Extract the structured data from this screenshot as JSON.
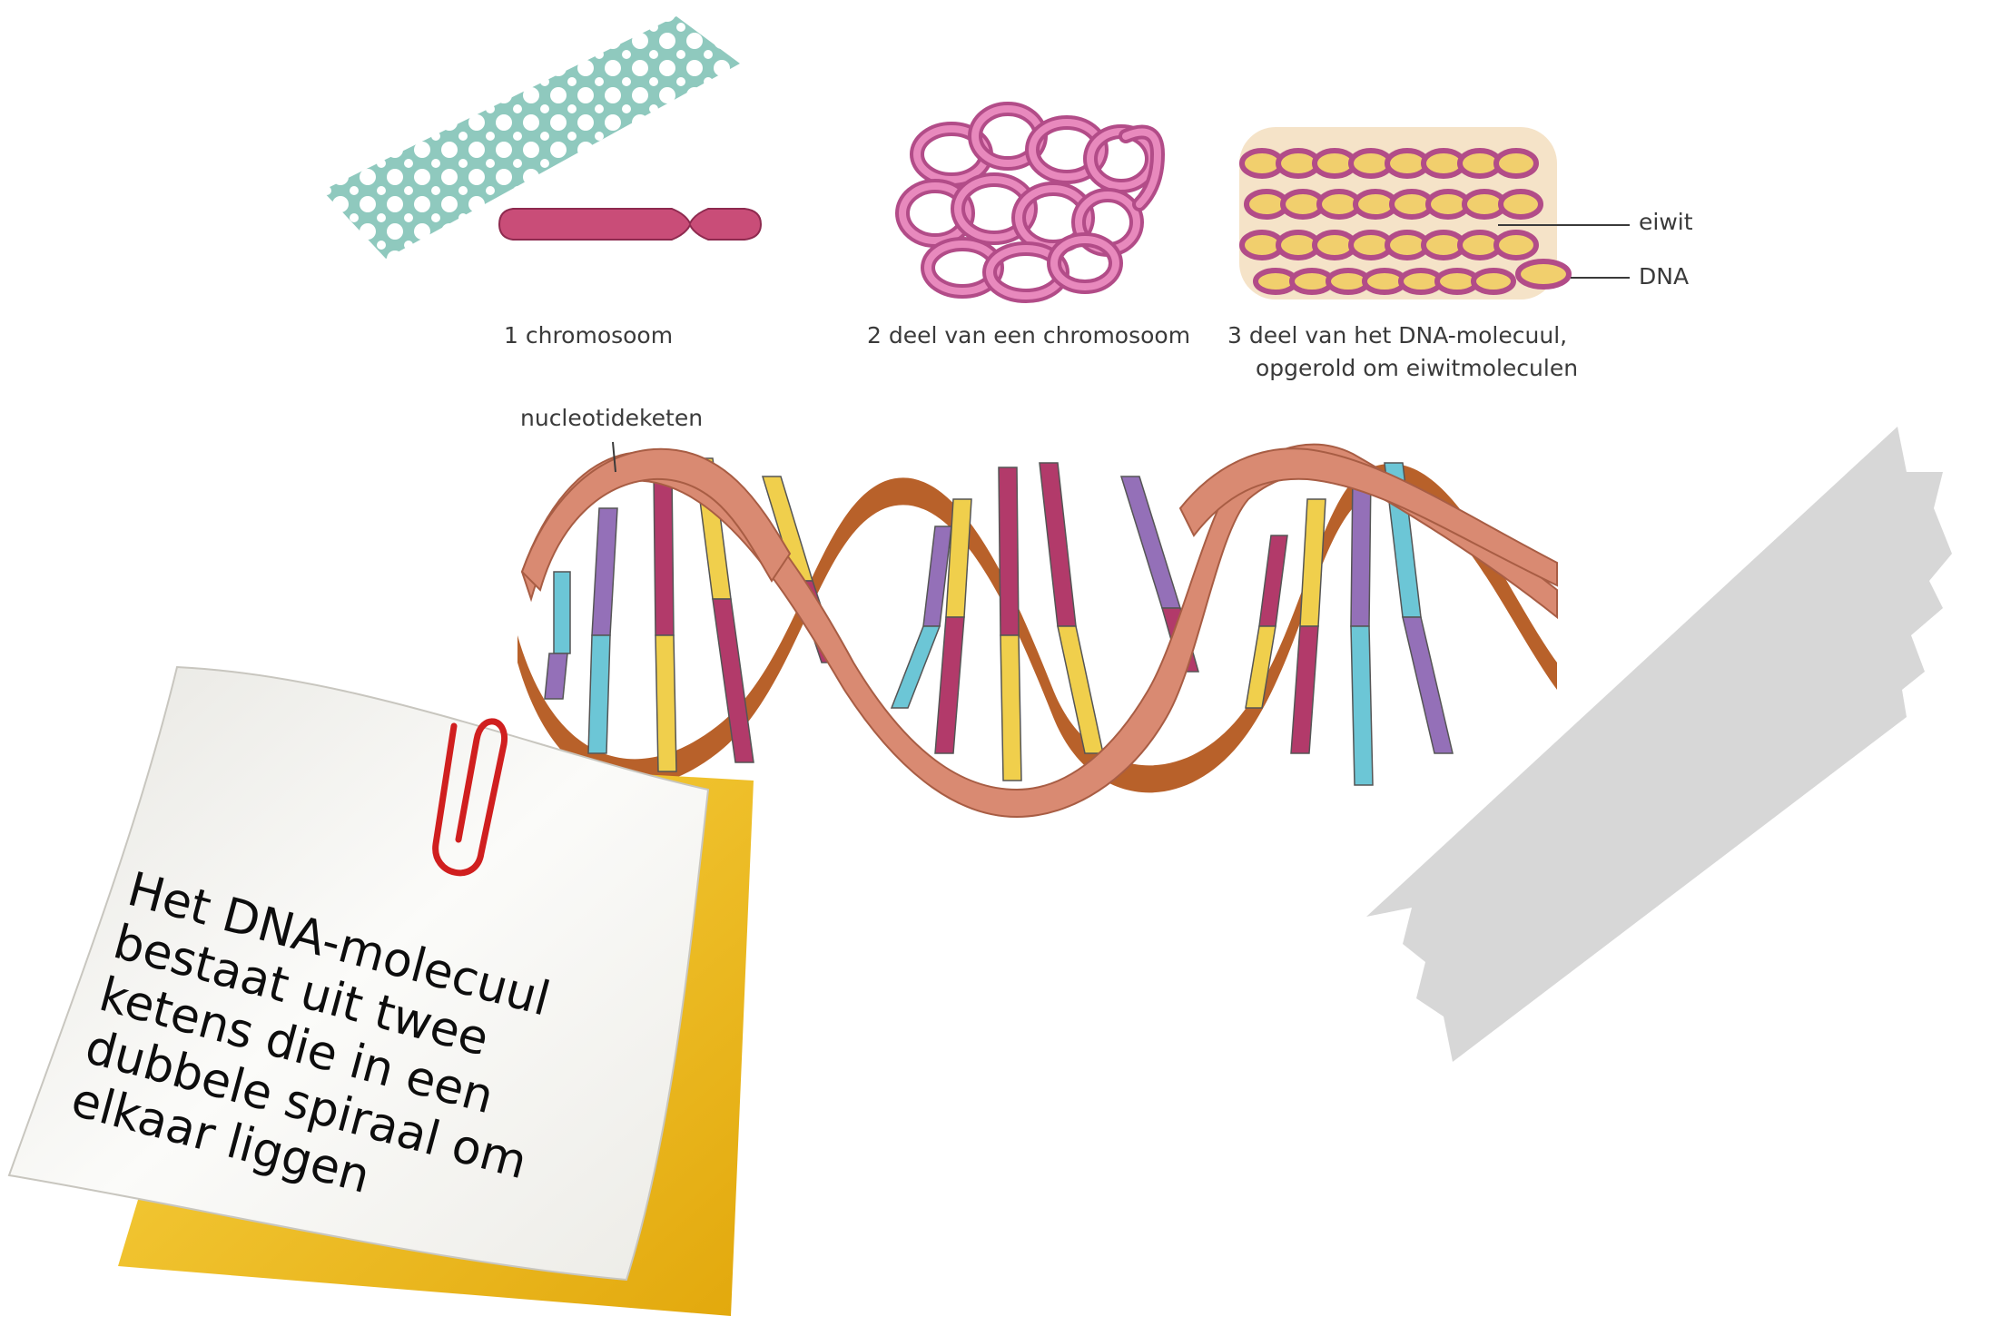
{
  "captions": {
    "chromosome": "1 chromosoom",
    "chromosome_part": "2 deel van een chromosoom",
    "dna_part_line1": "3 deel van het DNA-molecuul,",
    "dna_part_line2": "opgerold om eiwitmoleculen"
  },
  "labels": {
    "protein": "eiwit",
    "dna": "DNA",
    "nucleotide_chain": "nucleotideketen"
  },
  "note": {
    "lines": [
      "Het DNA-molecuul",
      "bestaat uit twee",
      "ketens die in een",
      "dubbele spiraal om",
      "elkaar liggen"
    ]
  },
  "colors": {
    "tape_teal": "#8fc9be",
    "chromosome": "#c94d78",
    "chromatin_pink": "#d86aa6",
    "histone_yellow": "#f1cf6d",
    "backbone_front": "#d98a72",
    "backbone_back": "#b8612a",
    "base_magenta": "#b23a6a",
    "base_yellow": "#f0cf4c",
    "base_purple": "#9470b8",
    "base_cyan": "#6cc6d6",
    "sticky_yellow": "#f6c41c",
    "paper": "#f3f2ee",
    "clip_red": "#d01f1f",
    "grey_tape": "#d7d7d7"
  }
}
